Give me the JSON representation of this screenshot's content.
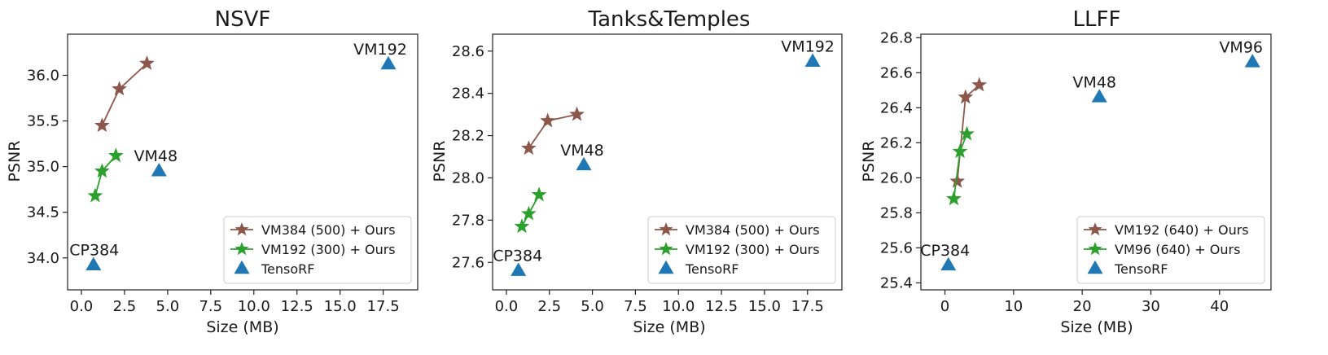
{
  "colors": {
    "brown": "#8c564b",
    "green": "#2ca02c",
    "blue": "#1f77b4"
  },
  "chart_data": [
    {
      "type": "scatter",
      "title": "NSVF",
      "xlabel": "Size (MB)",
      "ylabel": "PSNR",
      "xlim": [
        -0.8,
        19.5
      ],
      "ylim": [
        33.65,
        36.45
      ],
      "xticks": [
        0.0,
        2.5,
        5.0,
        7.5,
        10.0,
        12.5,
        15.0,
        17.5
      ],
      "xtick_labels": [
        "0.0",
        "2.5",
        "5.0",
        "7.5",
        "10.0",
        "12.5",
        "15.0",
        "17.5"
      ],
      "yticks": [
        34.0,
        34.5,
        35.0,
        35.5,
        36.0
      ],
      "ytick_labels": [
        "34.0",
        "34.5",
        "35.0",
        "35.5",
        "36.0"
      ],
      "legend_position": "bottom-right",
      "series": [
        {
          "name": "VM384 (500) + Ours",
          "marker": "star",
          "connected": true,
          "color": "#8c564b",
          "x": [
            1.2,
            2.2,
            3.8
          ],
          "y": [
            35.45,
            35.85,
            36.13
          ]
        },
        {
          "name": "VM192 (300) + Ours",
          "marker": "star",
          "connected": true,
          "color": "#2ca02c",
          "x": [
            0.8,
            1.2,
            2.0
          ],
          "y": [
            34.68,
            34.95,
            35.12
          ]
        },
        {
          "name": "TensoRF",
          "marker": "triangle",
          "connected": false,
          "color": "#1f77b4",
          "x": [
            0.7,
            4.5,
            17.8
          ],
          "y": [
            33.92,
            34.95,
            36.12
          ],
          "labels": [
            "CP384",
            "VM48",
            "VM192"
          ]
        }
      ]
    },
    {
      "type": "scatter",
      "title": "Tanks&Temples",
      "xlabel": "Size (MB)",
      "ylabel": "PSNR",
      "xlim": [
        -0.8,
        19.5
      ],
      "ylim": [
        27.47,
        28.68
      ],
      "xticks": [
        0.0,
        2.5,
        5.0,
        7.5,
        10.0,
        12.5,
        15.0,
        17.5
      ],
      "xtick_labels": [
        "0.0",
        "2.5",
        "5.0",
        "7.5",
        "10.0",
        "12.5",
        "15.0",
        "17.5"
      ],
      "yticks": [
        27.6,
        27.8,
        28.0,
        28.2,
        28.4,
        28.6
      ],
      "ytick_labels": [
        "27.6",
        "27.8",
        "28.0",
        "28.2",
        "28.4",
        "28.6"
      ],
      "legend_position": "bottom-right",
      "series": [
        {
          "name": "VM384 (500) + Ours",
          "marker": "star",
          "connected": true,
          "color": "#8c564b",
          "x": [
            1.3,
            2.4,
            4.1
          ],
          "y": [
            28.14,
            28.27,
            28.3
          ]
        },
        {
          "name": "VM192 (300) + Ours",
          "marker": "star",
          "connected": true,
          "color": "#2ca02c",
          "x": [
            0.9,
            1.3,
            1.9
          ],
          "y": [
            27.77,
            27.83,
            27.92
          ]
        },
        {
          "name": "TensoRF",
          "marker": "triangle",
          "connected": false,
          "color": "#1f77b4",
          "x": [
            0.7,
            4.5,
            17.8
          ],
          "y": [
            27.56,
            28.06,
            28.55
          ],
          "labels": [
            "CP384",
            "VM48",
            "VM192"
          ]
        }
      ]
    },
    {
      "type": "scatter",
      "title": "LLFF",
      "xlabel": "Size (MB)",
      "ylabel": "PSNR",
      "xlim": [
        -3.5,
        47.5
      ],
      "ylim": [
        25.36,
        26.82
      ],
      "xticks": [
        0,
        10,
        20,
        30,
        40
      ],
      "xtick_labels": [
        "0",
        "10",
        "20",
        "30",
        "40"
      ],
      "yticks": [
        25.4,
        25.6,
        25.8,
        26.0,
        26.2,
        26.4,
        26.6,
        26.8
      ],
      "ytick_labels": [
        "25.4",
        "25.6",
        "25.8",
        "26.0",
        "26.2",
        "26.4",
        "26.6",
        "26.8"
      ],
      "legend_position": "bottom-right",
      "series": [
        {
          "name": "VM192 (640) + Ours",
          "marker": "star",
          "connected": true,
          "color": "#8c564b",
          "x": [
            1.8,
            3.0,
            5.0
          ],
          "y": [
            25.98,
            26.46,
            26.53
          ]
        },
        {
          "name": "VM96   (640) + Ours",
          "marker": "star",
          "connected": true,
          "color": "#2ca02c",
          "x": [
            1.3,
            2.2,
            3.2
          ],
          "y": [
            25.88,
            26.15,
            26.25
          ]
        },
        {
          "name": "TensoRF",
          "marker": "triangle",
          "connected": false,
          "color": "#1f77b4",
          "x": [
            0.5,
            22.5,
            44.8
          ],
          "y": [
            25.5,
            26.46,
            26.66
          ],
          "labels": [
            "CP384",
            "VM48",
            "VM96"
          ]
        }
      ]
    }
  ]
}
